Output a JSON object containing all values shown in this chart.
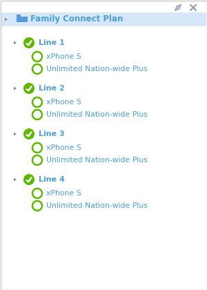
{
  "bg_color": "#ffffff",
  "border_color": "#c8c8c8",
  "header_bg": "#d6e8f7",
  "folder_color": "#5b9bd5",
  "arrow_color": "#8a8a8a",
  "green_fill": "#5cb800",
  "green_circle_stroke": "#5cb800",
  "text_color": "#4a9fd4",
  "root_label": "Family Connect Plan",
  "tree_items": [
    {
      "label": "Line 1",
      "level": 1,
      "type": "check"
    },
    {
      "label": "xPhone S",
      "level": 2,
      "type": "circle"
    },
    {
      "label": "Unlimited Nation-wide Plus",
      "level": 2,
      "type": "circle"
    },
    {
      "label": "Line 2",
      "level": 1,
      "type": "check"
    },
    {
      "label": "xPhone S",
      "level": 2,
      "type": "circle"
    },
    {
      "label": "Unlimited Nation-wide Plus",
      "level": 2,
      "type": "circle"
    },
    {
      "label": "Line 3",
      "level": 1,
      "type": "check"
    },
    {
      "label": "xPhone S",
      "level": 2,
      "type": "circle"
    },
    {
      "label": "Unlimited Nation-wide Plus",
      "level": 2,
      "type": "circle"
    },
    {
      "label": "Line 4",
      "level": 1,
      "type": "check"
    },
    {
      "label": "xPhone S",
      "level": 2,
      "type": "circle"
    },
    {
      "label": "Unlimited Nation-wide Plus",
      "level": 2,
      "type": "circle"
    }
  ]
}
